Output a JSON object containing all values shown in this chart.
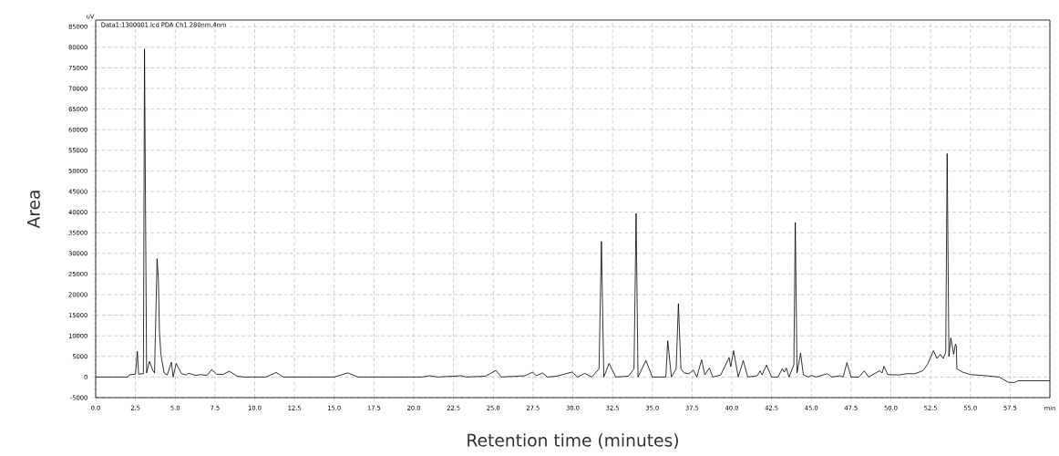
{
  "chart_data": {
    "type": "line",
    "xlabel": "Retention time (minutes)",
    "ylabel": "Area",
    "annotations": [
      "uV",
      "Data1:1300001.lcd PDA Ch1 280nm,4nm"
    ],
    "xlim": [
      0,
      60
    ],
    "ylim": [
      -5000,
      86600
    ],
    "xticks": [
      {
        "value": 0,
        "label": "0.0"
      },
      {
        "value": 2.5,
        "label": "2.5"
      },
      {
        "value": 5,
        "label": "5.0"
      },
      {
        "value": 7.5,
        "label": "7.5"
      },
      {
        "value": 10,
        "label": "10.0"
      },
      {
        "value": 12.5,
        "label": "12.5"
      },
      {
        "value": 15,
        "label": "15.0"
      },
      {
        "value": 17.5,
        "label": "17.5"
      },
      {
        "value": 20,
        "label": "20.0"
      },
      {
        "value": 22.5,
        "label": "22.5"
      },
      {
        "value": 25,
        "label": "25.0"
      },
      {
        "value": 27.5,
        "label": "27.5"
      },
      {
        "value": 30,
        "label": "30.0"
      },
      {
        "value": 32.5,
        "label": "32.5"
      },
      {
        "value": 35,
        "label": "35.0"
      },
      {
        "value": 37.5,
        "label": "37.5"
      },
      {
        "value": 40,
        "label": "40.0"
      },
      {
        "value": 42.5,
        "label": "42.5"
      },
      {
        "value": 45,
        "label": "45.0"
      },
      {
        "value": 47.5,
        "label": "47.5"
      },
      {
        "value": 50,
        "label": "50.0"
      },
      {
        "value": 52.5,
        "label": "52.5"
      },
      {
        "value": 55,
        "label": "55.0"
      },
      {
        "value": 57.5,
        "label": "57.5"
      },
      {
        "value": 60,
        "label": "min"
      }
    ],
    "yticks": [
      -5000,
      0,
      5000,
      10000,
      15000,
      20000,
      25000,
      30000,
      35000,
      40000,
      45000,
      50000,
      55000,
      60000,
      65000,
      70000,
      75000,
      80000,
      85000
    ],
    "grid": true,
    "line_style": "solid",
    "series": [
      {
        "color": "#000000",
        "x": [
          0,
          2.0,
          2.1,
          2.5,
          2.62,
          2.7,
          3.0,
          3.07,
          3.2,
          3.38,
          3.6,
          3.7,
          3.86,
          3.94,
          4.01,
          4.1,
          4.3,
          4.5,
          4.76,
          4.87,
          5.06,
          5.4,
          5.7,
          5.83,
          6.3,
          6.6,
          7.0,
          7.3,
          7.6,
          8.0,
          8.4,
          8.9,
          9.3,
          10.7,
          11.35,
          11.8,
          15.0,
          15.85,
          16.5,
          20.5,
          21.0,
          21.5,
          23.0,
          23.3,
          24.5,
          25.17,
          25.5,
          27.0,
          27.47,
          27.7,
          28.1,
          28.4,
          29.0,
          29.95,
          30.3,
          30.75,
          31.2,
          31.65,
          31.8,
          31.95,
          32.28,
          32.7,
          33.5,
          33.85,
          33.98,
          34.1,
          34.6,
          35.0,
          35.85,
          35.97,
          36.2,
          36.5,
          36.64,
          36.8,
          37.0,
          37.3,
          37.58,
          37.8,
          38.1,
          38.3,
          38.59,
          38.8,
          39.3,
          39.83,
          39.93,
          40.11,
          40.4,
          40.72,
          41.0,
          41.6,
          41.78,
          41.9,
          42.18,
          42.5,
          42.9,
          43.17,
          43.3,
          43.42,
          43.6,
          43.9,
          43.99,
          44.1,
          44.32,
          44.5,
          44.8,
          44.99,
          45.3,
          46.0,
          46.3,
          46.8,
          47.0,
          47.24,
          47.5,
          48.0,
          48.33,
          48.6,
          49.28,
          49.45,
          49.57,
          49.8,
          50.5,
          51.0,
          51.5,
          52.0,
          52.3,
          52.68,
          52.9,
          53.1,
          53.3,
          53.45,
          53.54,
          53.65,
          53.77,
          53.95,
          54.06,
          54.12,
          54.15,
          54.5,
          55.0,
          56.0,
          56.8,
          57.4,
          57.8,
          58.0,
          60
        ],
        "values": [
          0,
          0,
          500,
          700,
          6200,
          700,
          800,
          79600,
          1000,
          3800,
          1500,
          1000,
          28700,
          24000,
          11000,
          5500,
          1000,
          500,
          3600,
          0,
          3300,
          800,
          500,
          900,
          400,
          600,
          400,
          1800,
          700,
          600,
          1400,
          200,
          0,
          0,
          1100,
          0,
          0,
          1000,
          0,
          0,
          300,
          0,
          300,
          0,
          200,
          1600,
          0,
          300,
          1200,
          300,
          1000,
          0,
          200,
          1200,
          0,
          900,
          0,
          2000,
          32900,
          0,
          3300,
          0,
          200,
          2000,
          39700,
          0,
          4000,
          0,
          0,
          8800,
          0,
          2000,
          17800,
          2000,
          1000,
          800,
          1700,
          0,
          4200,
          500,
          2200,
          0,
          500,
          4700,
          2500,
          6400,
          0,
          4000,
          0,
          300,
          1500,
          500,
          2900,
          0,
          0,
          2000,
          1200,
          2200,
          0,
          3000,
          37500,
          1000,
          5800,
          500,
          0,
          400,
          0,
          800,
          0,
          300,
          0,
          3500,
          0,
          0,
          1500,
          0,
          1500,
          1000,
          2600,
          600,
          500,
          800,
          800,
          1500,
          3000,
          6400,
          4500,
          5500,
          4500,
          6000,
          54200,
          5000,
          9500,
          5500,
          8000,
          7500,
          2000,
          1200,
          600,
          300,
          0,
          -1300,
          -1300,
          -900,
          -900
        ]
      }
    ]
  }
}
